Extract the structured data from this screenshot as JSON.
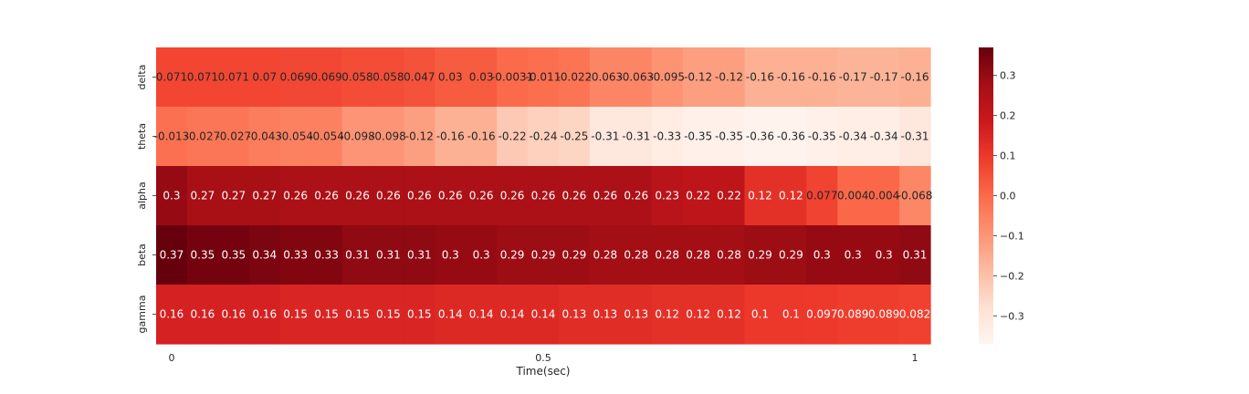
{
  "chart_data": {
    "type": "heatmap",
    "title": "",
    "xlabel": "Time(sec)",
    "ylabel": "",
    "rows": [
      "delta",
      "theta",
      "alpha",
      "beta",
      "gamma"
    ],
    "x_ticks": [
      {
        "label": "0",
        "value": 0
      },
      {
        "label": "0.5",
        "value": 0.5
      },
      {
        "label": "1",
        "value": 1
      }
    ],
    "values": [
      [
        "0.071",
        "0.071",
        "0.071",
        "0.07",
        "0.069",
        "0.069",
        "0.058",
        "0.058",
        "0.047",
        "0.03",
        "0.03",
        "-0.0031",
        "-0.011",
        "-0.022",
        "-0.063",
        "-0.063",
        "-0.095",
        "-0.12",
        "-0.12",
        "-0.16",
        "-0.16",
        "-0.16",
        "-0.17",
        "-0.17",
        "-0.16"
      ],
      [
        "-0.013",
        "-0.027",
        "-0.027",
        "-0.043",
        "-0.054",
        "-0.054",
        "-0.098",
        "-0.098",
        "-0.12",
        "-0.16",
        "-0.16",
        "-0.22",
        "-0.24",
        "-0.25",
        "-0.31",
        "-0.31",
        "-0.33",
        "-0.35",
        "-0.35",
        "-0.36",
        "-0.36",
        "-0.35",
        "-0.34",
        "-0.34",
        "-0.31"
      ],
      [
        "0.3",
        "0.27",
        "0.27",
        "0.27",
        "0.26",
        "0.26",
        "0.26",
        "0.26",
        "0.26",
        "0.26",
        "0.26",
        "0.26",
        "0.26",
        "0.26",
        "0.26",
        "0.26",
        "0.23",
        "0.22",
        "0.22",
        "0.12",
        "0.12",
        "0.077",
        "0.004",
        "0.004",
        "-0.068"
      ],
      [
        "0.37",
        "0.35",
        "0.35",
        "0.34",
        "0.33",
        "0.33",
        "0.31",
        "0.31",
        "0.31",
        "0.3",
        "0.3",
        "0.29",
        "0.29",
        "0.29",
        "0.28",
        "0.28",
        "0.28",
        "0.28",
        "0.28",
        "0.29",
        "0.29",
        "0.3",
        "0.3",
        "0.3",
        "0.31"
      ],
      [
        "0.16",
        "0.16",
        "0.16",
        "0.16",
        "0.15",
        "0.15",
        "0.15",
        "0.15",
        "0.15",
        "0.14",
        "0.14",
        "0.14",
        "0.14",
        "0.13",
        "0.13",
        "0.13",
        "0.12",
        "0.12",
        "0.12",
        "0.1",
        "0.1",
        "0.097",
        "0.089",
        "0.089",
        "0.082"
      ]
    ],
    "vmin": -0.37,
    "vmax": 0.37,
    "colormap": "Reds",
    "colorbar": {
      "ticks": [
        {
          "label": "0.3",
          "value": 0.3
        },
        {
          "label": "0.2",
          "value": 0.2
        },
        {
          "label": "0.1",
          "value": 0.1
        },
        {
          "label": "0.0",
          "value": 0.0
        },
        {
          "label": "−0.1",
          "value": -0.1
        },
        {
          "label": "−0.2",
          "value": -0.2
        },
        {
          "label": "−0.3",
          "value": -0.3
        }
      ]
    },
    "grid": false,
    "annotated": true
  }
}
